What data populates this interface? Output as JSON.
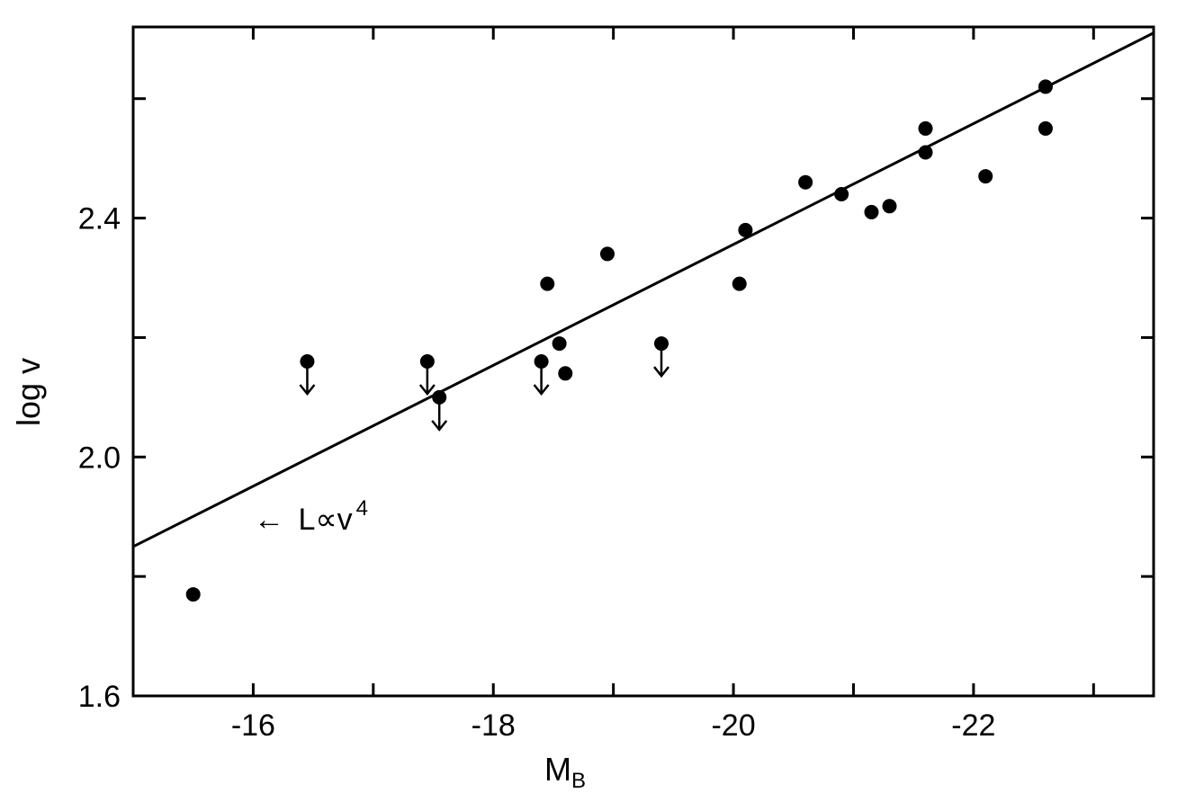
{
  "chart_data": {
    "type": "scatter",
    "title": "",
    "xlabel": "M",
    "xlabel_subscript": "B",
    "ylabel": "log v",
    "xlim": [
      -15,
      -23.5
    ],
    "ylim": [
      1.6,
      2.72
    ],
    "x_ticks": [
      {
        "value": -16,
        "label": "-16"
      },
      {
        "value": -18,
        "label": "-18"
      },
      {
        "value": -20,
        "label": "-20"
      },
      {
        "value": -22,
        "label": "-22"
      }
    ],
    "x_minor_ticks": [
      -15,
      -17,
      -19,
      -21,
      -23
    ],
    "y_ticks": [
      {
        "value": 1.6,
        "label": "1.6"
      },
      {
        "value": 2.0,
        "label": "2.0"
      },
      {
        "value": 2.4,
        "label": "2.4"
      }
    ],
    "y_minor_ticks": [
      1.8,
      2.2,
      2.6
    ],
    "fit_line": {
      "x": [
        -15,
        -23.5
      ],
      "y": [
        1.85,
        2.71
      ]
    },
    "series": [
      {
        "points": [
          {
            "x": -15.5,
            "y": 1.77,
            "upper_limit": false
          },
          {
            "x": -16.45,
            "y": 2.16,
            "upper_limit": true
          },
          {
            "x": -17.45,
            "y": 2.16,
            "upper_limit": true
          },
          {
            "x": -17.55,
            "y": 2.1,
            "upper_limit": true
          },
          {
            "x": -18.4,
            "y": 2.16,
            "upper_limit": true
          },
          {
            "x": -18.45,
            "y": 2.29,
            "upper_limit": false
          },
          {
            "x": -18.55,
            "y": 2.19,
            "upper_limit": false
          },
          {
            "x": -18.6,
            "y": 2.14,
            "upper_limit": false
          },
          {
            "x": -18.95,
            "y": 2.34,
            "upper_limit": false
          },
          {
            "x": -19.4,
            "y": 2.19,
            "upper_limit": true
          },
          {
            "x": -20.05,
            "y": 2.29,
            "upper_limit": false
          },
          {
            "x": -20.1,
            "y": 2.38,
            "upper_limit": false
          },
          {
            "x": -20.6,
            "y": 2.46,
            "upper_limit": false
          },
          {
            "x": -20.9,
            "y": 2.44,
            "upper_limit": false
          },
          {
            "x": -21.15,
            "y": 2.41,
            "upper_limit": false
          },
          {
            "x": -21.3,
            "y": 2.42,
            "upper_limit": false
          },
          {
            "x": -21.6,
            "y": 2.55,
            "upper_limit": false
          },
          {
            "x": -21.6,
            "y": 2.51,
            "upper_limit": false
          },
          {
            "x": -22.1,
            "y": 2.47,
            "upper_limit": false
          },
          {
            "x": -22.6,
            "y": 2.62,
            "upper_limit": false
          },
          {
            "x": -22.6,
            "y": 2.55,
            "upper_limit": false
          }
        ]
      }
    ],
    "annotation": {
      "arrow": "←",
      "text": "L∝v",
      "superscript": "4",
      "x": -16,
      "y": 1.88
    }
  }
}
